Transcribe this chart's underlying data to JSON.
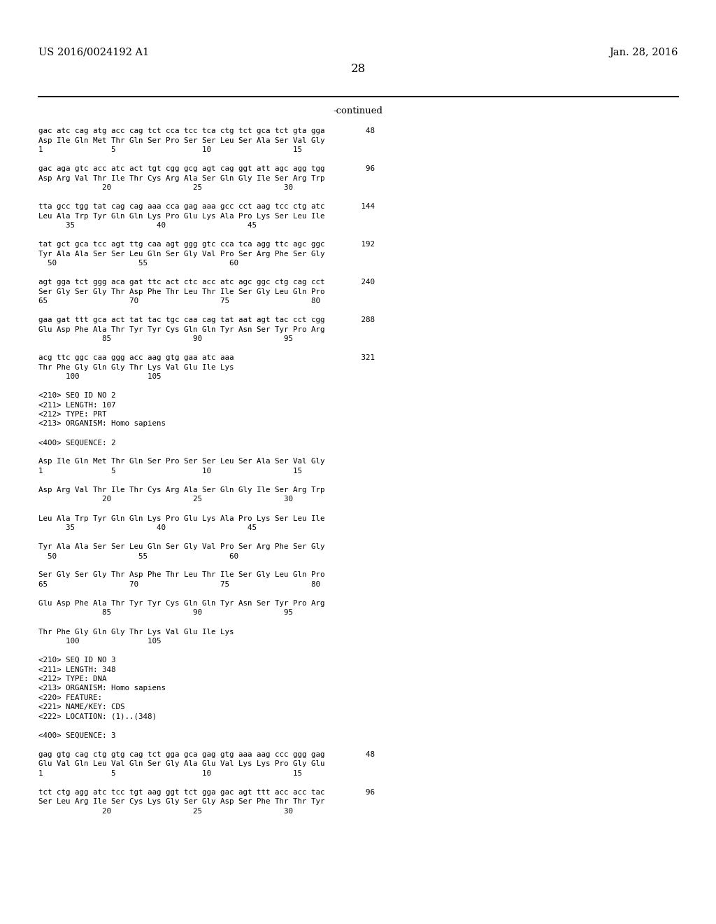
{
  "left_header": "US 2016/0024192 A1",
  "right_header": "Jan. 28, 2016",
  "page_number": "28",
  "continued_label": "-continued",
  "background_color": "#ffffff",
  "text_color": "#000000",
  "font_size": 7.8,
  "header_font_size": 10.5,
  "page_num_font_size": 12,
  "lines": [
    "gac atc cag atg acc cag tct cca tcc tca ctg tct gca tct gta gga         48",
    "Asp Ile Gln Met Thr Gln Ser Pro Ser Ser Leu Ser Ala Ser Val Gly",
    "1               5                   10                  15",
    "",
    "gac aga gtc acc atc act tgt cgg gcg agt cag ggt att agc agg tgg         96",
    "Asp Arg Val Thr Ile Thr Cys Arg Ala Ser Gln Gly Ile Ser Arg Trp",
    "              20                  25                  30",
    "",
    "tta gcc tgg tat cag cag aaa cca gag aaa gcc cct aag tcc ctg atc        144",
    "Leu Ala Trp Tyr Gln Gln Lys Pro Glu Lys Ala Pro Lys Ser Leu Ile",
    "      35                  40                  45",
    "",
    "tat gct gca tcc agt ttg caa agt ggg gtc cca tca agg ttc agc ggc        192",
    "Tyr Ala Ala Ser Ser Leu Gln Ser Gly Val Pro Ser Arg Phe Ser Gly",
    "  50                  55                  60",
    "",
    "agt gga tct ggg aca gat ttc act ctc acc atc agc ggc ctg cag cct        240",
    "Ser Gly Ser Gly Thr Asp Phe Thr Leu Thr Ile Ser Gly Leu Gln Pro",
    "65                  70                  75                  80",
    "",
    "gaa gat ttt gca act tat tac tgc caa cag tat aat agt tac cct cgg        288",
    "Glu Asp Phe Ala Thr Tyr Tyr Cys Gln Gln Tyr Asn Ser Tyr Pro Arg",
    "              85                  90                  95",
    "",
    "acg ttc ggc caa ggg acc aag gtg gaa atc aaa                            321",
    "Thr Phe Gly Gln Gly Thr Lys Val Glu Ile Lys",
    "      100               105",
    "",
    "<210> SEQ ID NO 2",
    "<211> LENGTH: 107",
    "<212> TYPE: PRT",
    "<213> ORGANISM: Homo sapiens",
    "",
    "<400> SEQUENCE: 2",
    "",
    "Asp Ile Gln Met Thr Gln Ser Pro Ser Ser Leu Ser Ala Ser Val Gly",
    "1               5                   10                  15",
    "",
    "Asp Arg Val Thr Ile Thr Cys Arg Ala Ser Gln Gly Ile Ser Arg Trp",
    "              20                  25                  30",
    "",
    "Leu Ala Trp Tyr Gln Gln Lys Pro Glu Lys Ala Pro Lys Ser Leu Ile",
    "      35                  40                  45",
    "",
    "Tyr Ala Ala Ser Ser Leu Gln Ser Gly Val Pro Ser Arg Phe Ser Gly",
    "  50                  55                  60",
    "",
    "Ser Gly Ser Gly Thr Asp Phe Thr Leu Thr Ile Ser Gly Leu Gln Pro",
    "65                  70                  75                  80",
    "",
    "Glu Asp Phe Ala Thr Tyr Tyr Cys Gln Gln Tyr Asn Ser Tyr Pro Arg",
    "              85                  90                  95",
    "",
    "Thr Phe Gly Gln Gly Thr Lys Val Glu Ile Lys",
    "      100               105",
    "",
    "<210> SEQ ID NO 3",
    "<211> LENGTH: 348",
    "<212> TYPE: DNA",
    "<213> ORGANISM: Homo sapiens",
    "<220> FEATURE:",
    "<221> NAME/KEY: CDS",
    "<222> LOCATION: (1)..(348)",
    "",
    "<400> SEQUENCE: 3",
    "",
    "gag gtg cag ctg gtg cag tct gga gca gag gtg aaa aag ccc ggg gag         48",
    "Glu Val Gln Leu Val Gln Ser Gly Ala Glu Val Lys Lys Pro Gly Glu",
    "1               5                   10                  15",
    "",
    "tct ctg agg atc tcc tgt aag ggt tct gga gac agt ttt acc acc tac         96",
    "Ser Leu Arg Ile Ser Cys Lys Gly Ser Gly Asp Ser Phe Thr Thr Tyr",
    "              20                  25                  30"
  ]
}
